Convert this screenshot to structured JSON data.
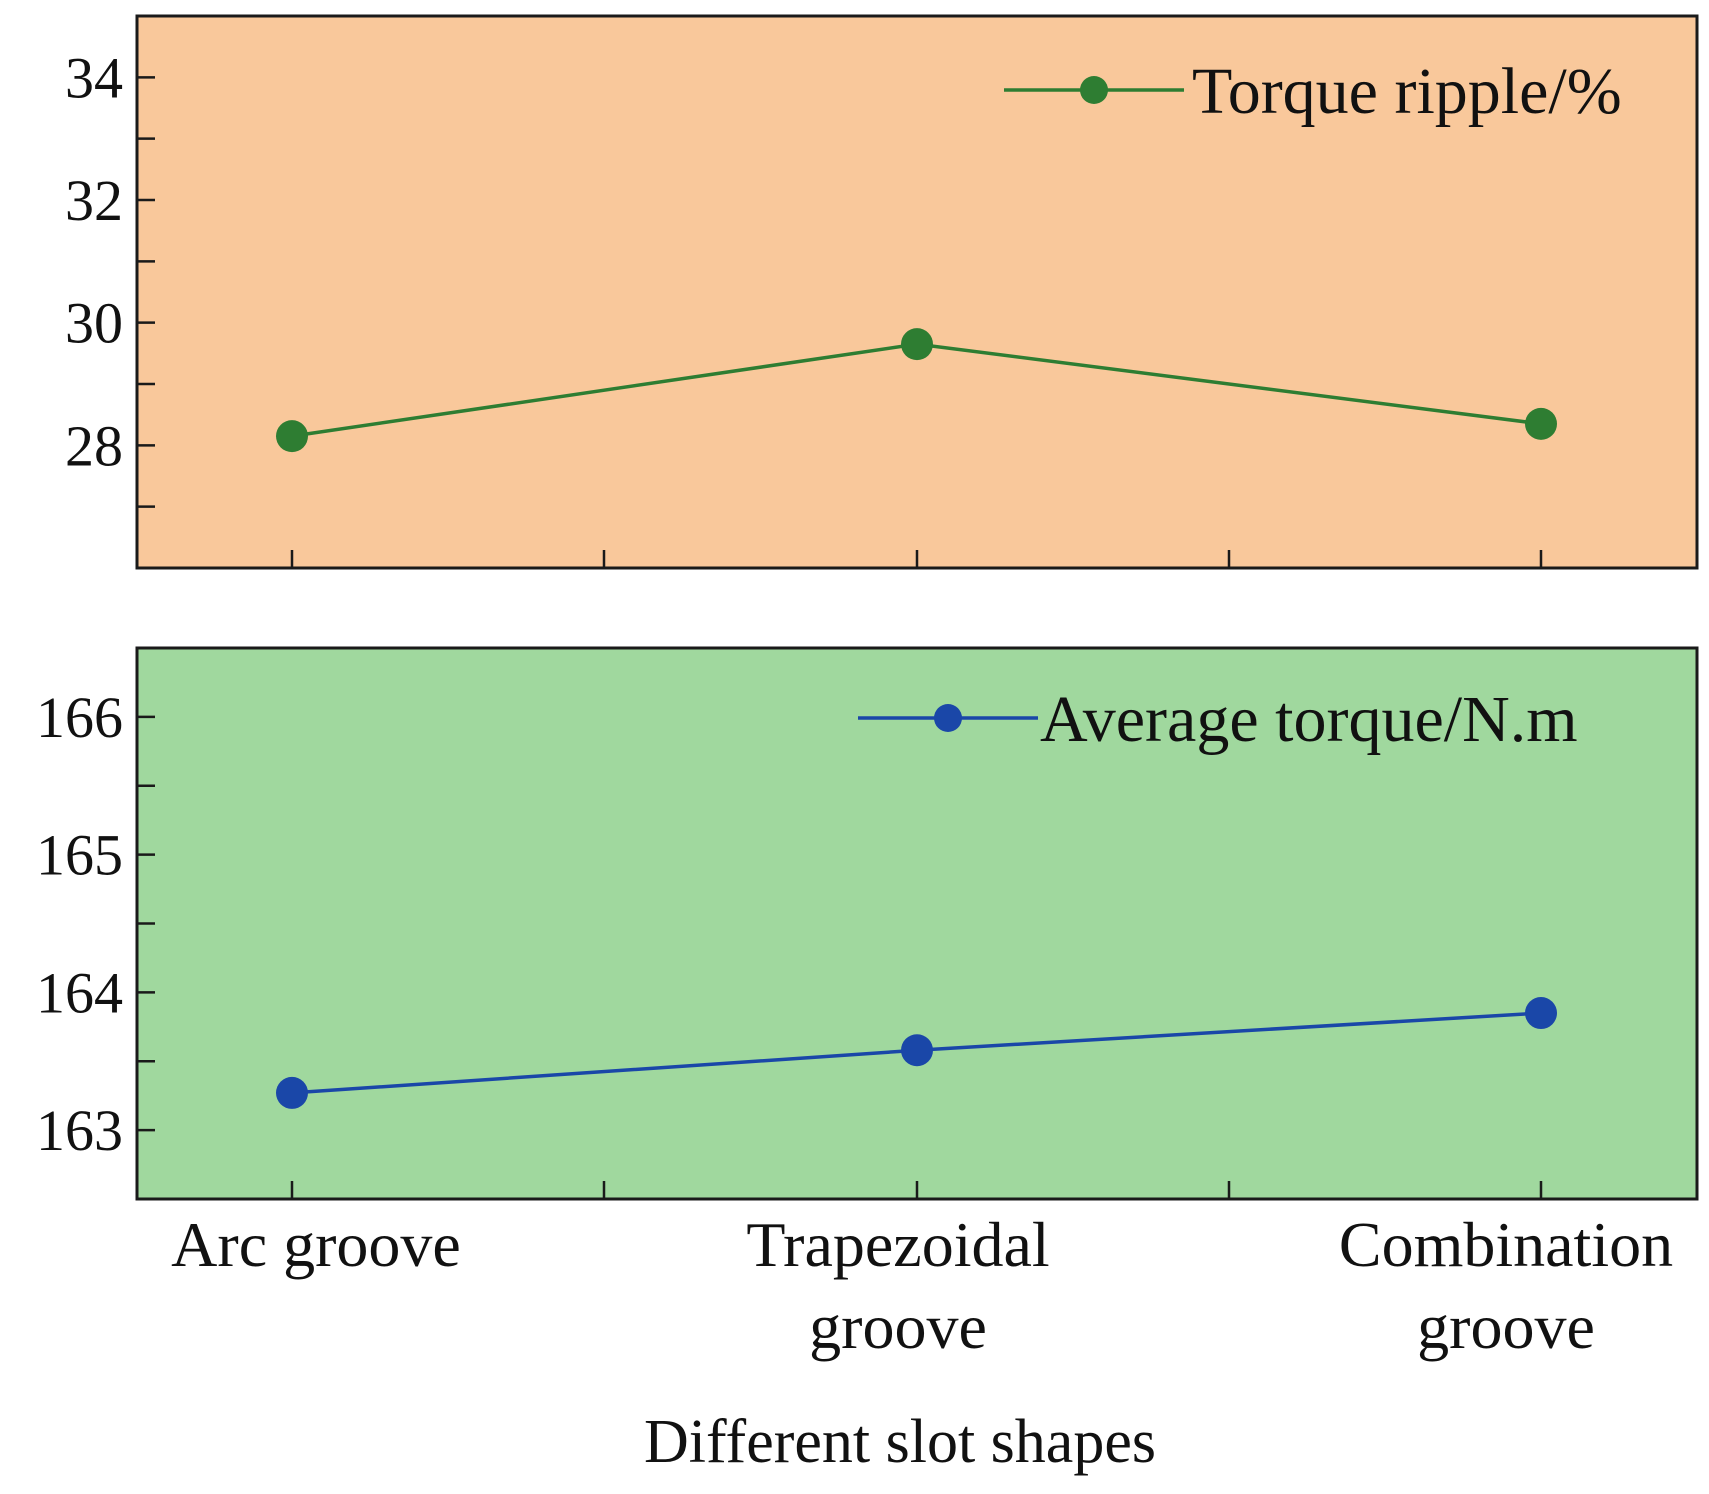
{
  "chart_data": [
    {
      "type": "line",
      "categories": [
        "Arc groove",
        "Trapezoidal groove",
        "Combination groove"
      ],
      "series": [
        {
          "name": "Torque ripple/%",
          "values": [
            28.15,
            29.65,
            28.35
          ],
          "color": "#2e7d32"
        }
      ],
      "ylim": [
        26.0,
        35.0
      ],
      "yticks": [
        28,
        30,
        32,
        34
      ],
      "background": "#f9c89b",
      "legend": "top-right",
      "xlabel": "",
      "ylabel": ""
    },
    {
      "type": "line",
      "categories": [
        "Arc groove",
        "Trapezoidal groove",
        "Combination groove"
      ],
      "series": [
        {
          "name": "Average torque/N.m",
          "values": [
            163.27,
            163.58,
            163.85
          ],
          "color": "#1a47a8"
        }
      ],
      "ylim": [
        162.5,
        166.5
      ],
      "yticks": [
        163,
        164,
        165,
        166
      ],
      "background": "#a0d89e",
      "legend": "top-right",
      "xlabel": "Different slot shapes",
      "ylabel": ""
    }
  ],
  "category_lines": [
    [
      "Arc groove"
    ],
    [
      "Trapezoidal",
      "groove"
    ],
    [
      "Combination",
      "groove"
    ]
  ]
}
